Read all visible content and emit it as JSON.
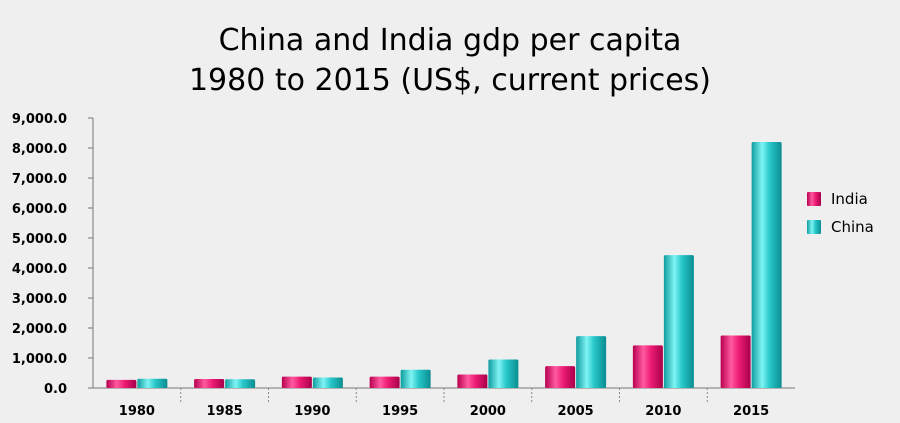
{
  "colors": {
    "background": "#efefef",
    "india": "#e8156f",
    "china": "#21c3c6"
  },
  "chart_data": {
    "type": "bar",
    "title_line1": "China and India gdp per capita",
    "title_line2": "1980 to 2015 (US$, current prices)",
    "xlabel": "",
    "ylabel": "",
    "categories": [
      "1980",
      "1985",
      "1990",
      "1995",
      "2000",
      "2005",
      "2010",
      "2015"
    ],
    "series": [
      {
        "name": "India",
        "values": [
          270,
          300,
          380,
          380,
          450,
          730,
          1420,
          1750
        ]
      },
      {
        "name": "China",
        "values": [
          310,
          290,
          350,
          610,
          950,
          1730,
          4430,
          8200
        ]
      }
    ],
    "ylim": [
      0,
      9000
    ],
    "yticks": [
      "0.0",
      "1,000.0",
      "2,000.0",
      "3,000.0",
      "4,000.0",
      "5,000.0",
      "6,000.0",
      "7,000.0",
      "8,000.0",
      "9,000.0"
    ],
    "grid": false,
    "legend_position": "right"
  }
}
